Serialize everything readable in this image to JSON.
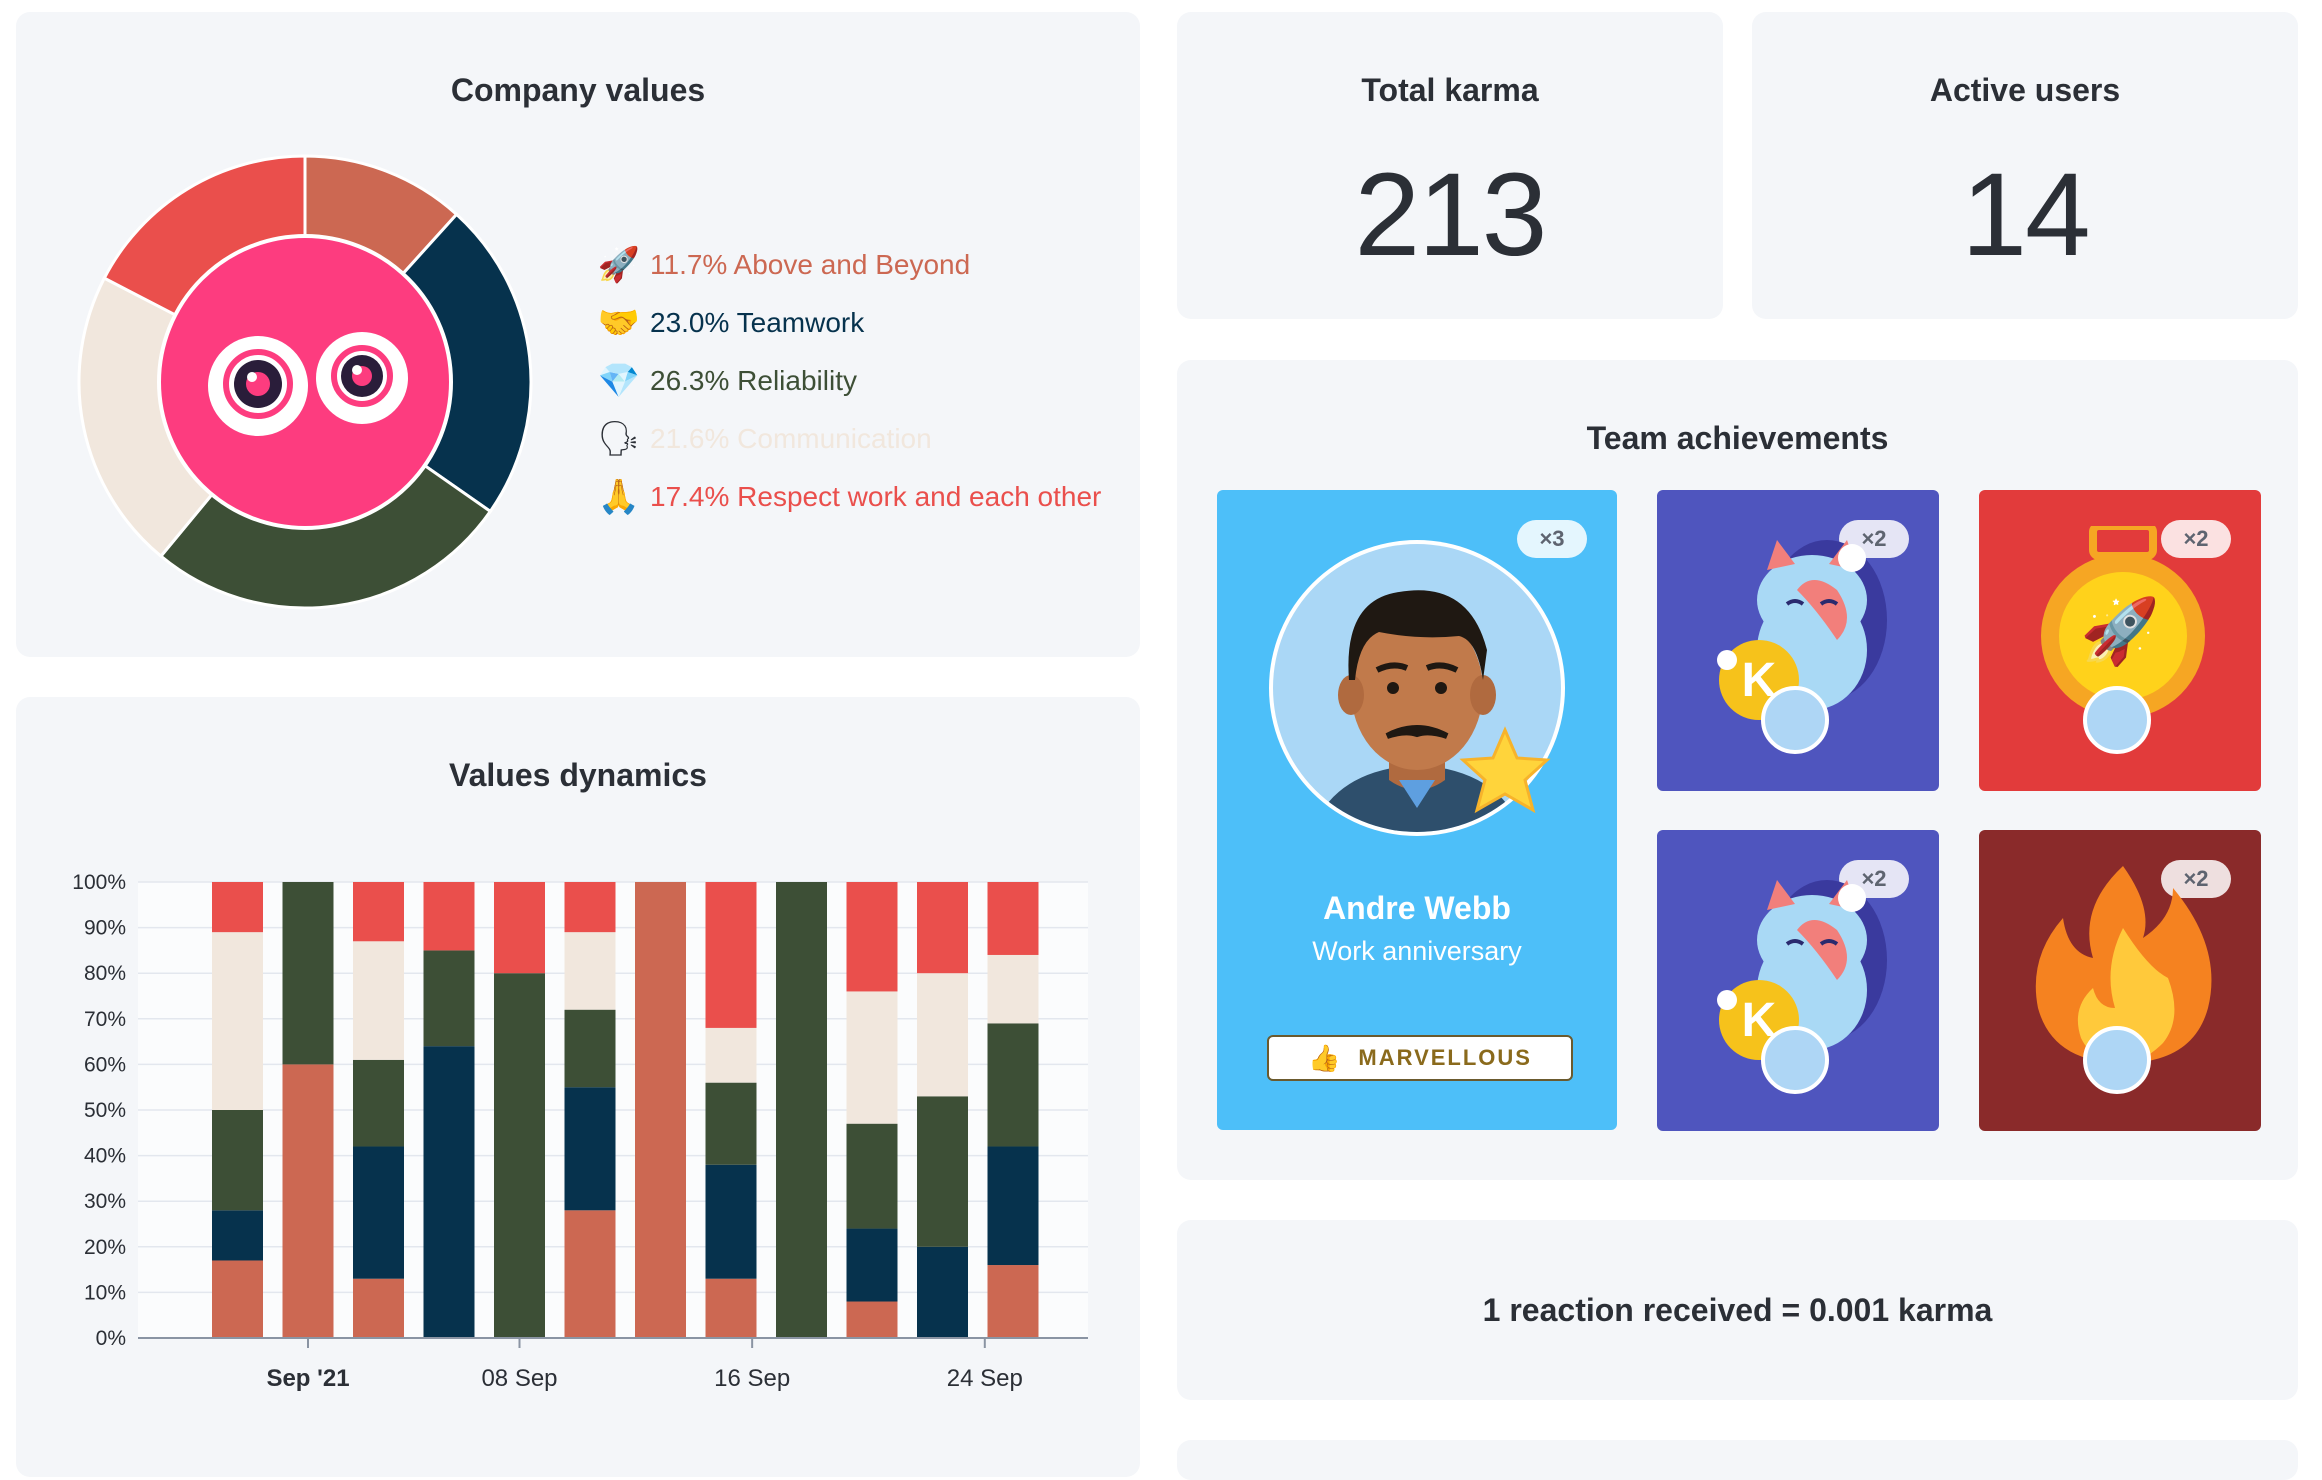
{
  "company_values": {
    "title": "Company values",
    "items": [
      {
        "emoji": "🚀",
        "icon": "rocket-icon",
        "label": "11.7% Above and Beyond",
        "percent": 11.7,
        "color": "#cc6852"
      },
      {
        "emoji": "🤝",
        "icon": "handshake-icon",
        "label": "23.0% Teamwork",
        "percent": 23.0,
        "color": "#06324d"
      },
      {
        "emoji": "💎",
        "icon": "diamond-icon",
        "label": "26.3% Reliability",
        "percent": 26.3,
        "color": "#3d4f36"
      },
      {
        "emoji": "🗣",
        "icon": "speaking-head-icon",
        "label": "21.6% Communication",
        "percent": 21.6,
        "color": "#f1e7dd"
      },
      {
        "emoji": "🙏",
        "icon": "folded-hands-icon",
        "label": "17.4% Respect work and each other",
        "percent": 17.4,
        "color": "#ea4f4c"
      }
    ]
  },
  "total_karma": {
    "title": "Total karma",
    "value": "213"
  },
  "active_users": {
    "title": "Active users",
    "value": "14"
  },
  "team_achievements": {
    "title": "Team achievements",
    "featured": {
      "name": "Andre Webb",
      "subtitle": "Work anniversary",
      "count": "×3",
      "reaction_label": "MARVELLOUS",
      "reaction_emoji": "👍"
    },
    "tiles": [
      {
        "count": "×2",
        "bg": "#4f55be",
        "icon": "lucky-cat-icon"
      },
      {
        "count": "×2",
        "bg": "#e23b3b",
        "icon": "rocket-medal-icon",
        "emoji": "🚀"
      },
      {
        "count": "×2",
        "bg": "#4f55be",
        "icon": "lucky-cat-icon"
      },
      {
        "count": "×2",
        "bg": "#8a2a2a",
        "icon": "fire-icon"
      }
    ]
  },
  "karma_info": {
    "text": "1 reaction received = 0.001 karma"
  },
  "values_dynamics": {
    "title": "Values dynamics",
    "chart_data": {
      "type": "bar",
      "stacked": true,
      "percent": true,
      "y_ticks": [
        "100%",
        "90%",
        "80%",
        "70%",
        "60%",
        "50%",
        "40%",
        "30%",
        "20%",
        "10%",
        "0%"
      ],
      "x_tick_labels": [
        {
          "label": "Sep '21",
          "bold": true,
          "at_bar": 1
        },
        {
          "label": "08 Sep",
          "bold": false,
          "at_bar": 4
        },
        {
          "label": "16 Sep",
          "bold": false,
          "at_bar": 7.3
        },
        {
          "label": "24 Sep",
          "bold": false,
          "at_bar": 10.6
        }
      ],
      "series": [
        {
          "color": "#cc6852",
          "values": [
            17,
            60,
            13,
            0,
            0,
            28,
            100,
            13,
            0,
            8,
            0,
            16
          ]
        },
        {
          "color": "#06324d",
          "values": [
            11,
            0,
            29,
            64,
            0,
            27,
            0,
            25,
            0,
            16,
            20,
            26
          ]
        },
        {
          "color": "#3d4f36",
          "values": [
            22,
            40,
            19,
            21,
            80,
            17,
            0,
            18,
            100,
            23,
            33,
            27
          ]
        },
        {
          "color": "#f1e7dd",
          "values": [
            39,
            0,
            26,
            0,
            0,
            17,
            0,
            12,
            0,
            29,
            27,
            15
          ]
        },
        {
          "color": "#ea4f4c",
          "values": [
            11,
            0,
            13,
            15,
            20,
            11,
            0,
            32,
            0,
            24,
            20,
            16
          ]
        }
      ]
    }
  }
}
